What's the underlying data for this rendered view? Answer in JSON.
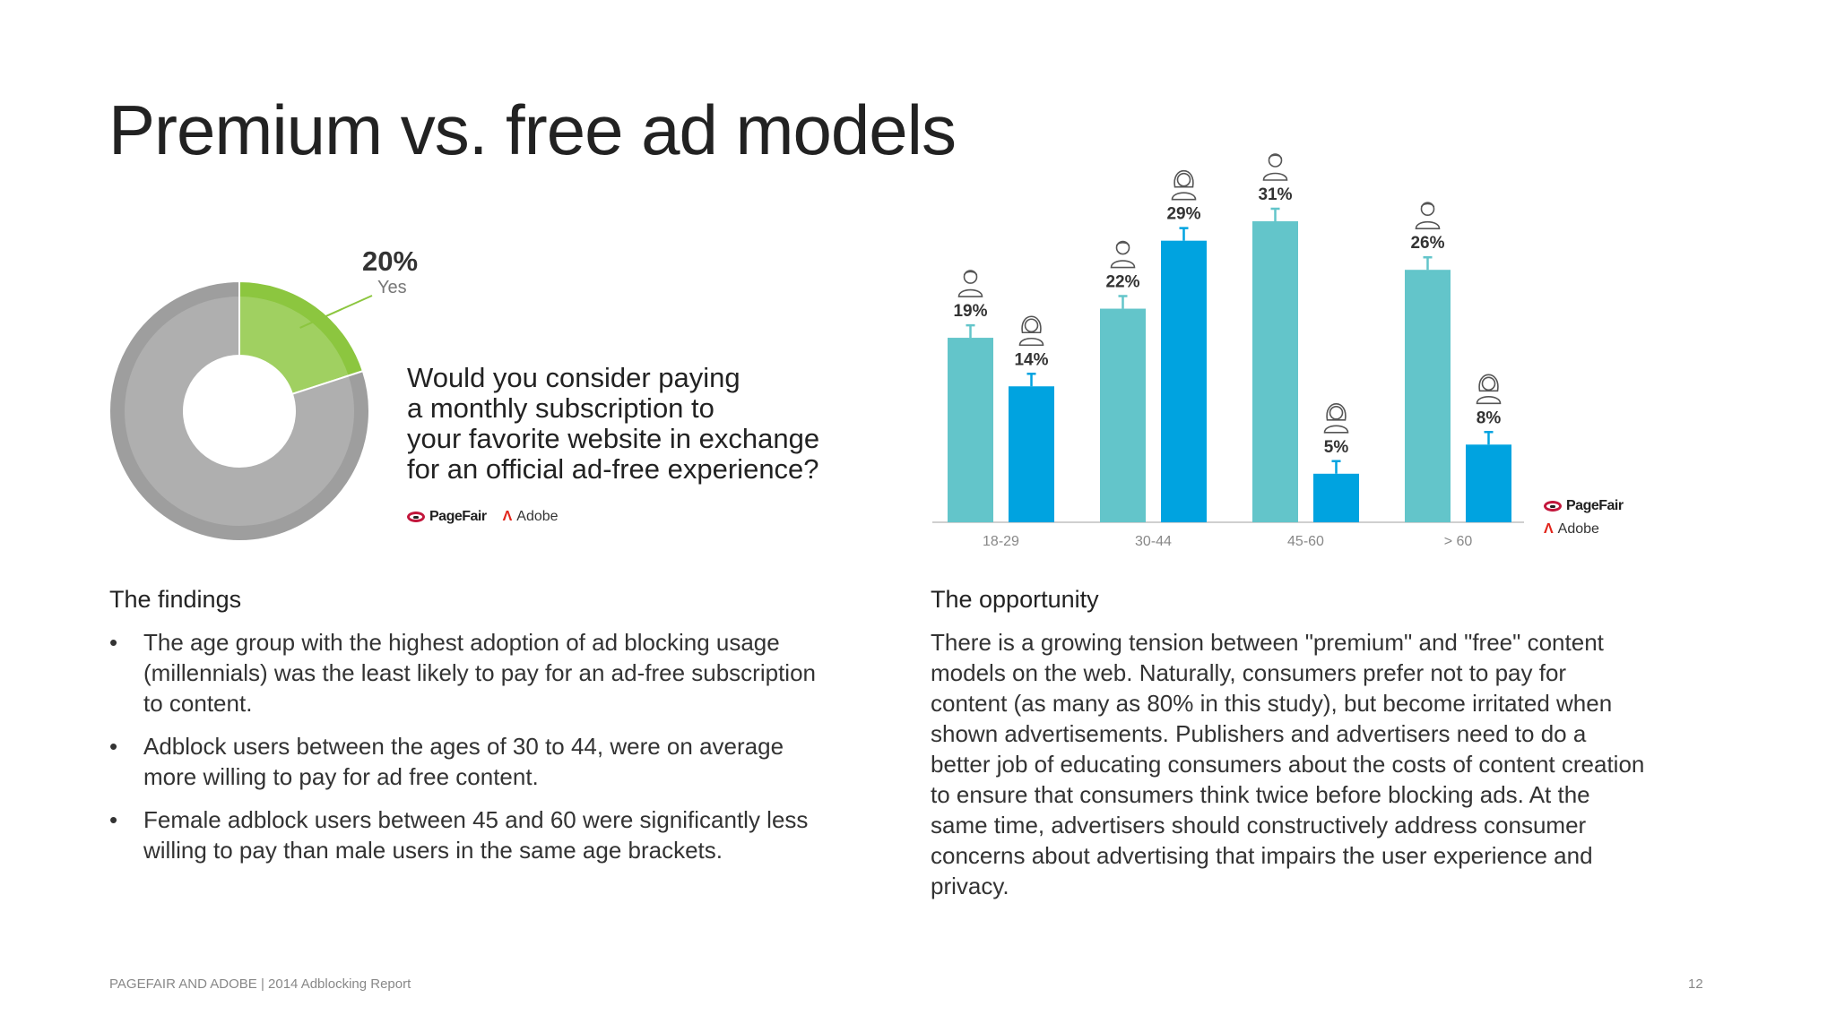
{
  "title": "Premium vs. free ad models",
  "question_lines": [
    "Would you consider paying",
    "a monthly subscription to",
    "your favorite website in exchange",
    "for an official ad-free experience?"
  ],
  "logos": {
    "pagefair": "PageFair",
    "adobe": "Adobe"
  },
  "colors": {
    "donut_yes": "#8cc63f",
    "donut_no": "#9e9e9e",
    "bar_male": "#63c5ca",
    "bar_female": "#00a3e0"
  },
  "chart_data": [
    {
      "type": "pie",
      "variant": "donut",
      "slices": [
        {
          "label": "Yes",
          "value": 20
        },
        {
          "label": "",
          "value": 80
        }
      ],
      "callout": {
        "value_label": "20%",
        "label": "Yes"
      }
    },
    {
      "type": "bar",
      "categories": [
        "18-29",
        "30-44",
        "45-60",
        "> 60"
      ],
      "series": [
        {
          "icon": "male-person-icon",
          "values": [
            19,
            22,
            31,
            26
          ],
          "labels": [
            "19%",
            "22%",
            "31%",
            "26%"
          ]
        },
        {
          "icon": "female-person-icon",
          "values": [
            14,
            29,
            5,
            8
          ],
          "labels": [
            "14%",
            "29%",
            "5%",
            "8%"
          ]
        }
      ],
      "ylim": [
        0,
        31
      ],
      "error_bars": true,
      "grid": false
    }
  ],
  "findings": {
    "heading": "The findings",
    "items": [
      "The age group with the highest adoption of ad blocking usage (millennials) was the least likely to pay for an ad-free subscription to content.",
      "Adblock users between the ages of 30 to 44, were on average more willing to pay for ad free content.",
      "Female adblock users between 45 and 60 were significantly less willing to pay than male users in the same age brackets."
    ]
  },
  "opportunity": {
    "heading": "The opportunity",
    "text": "There is a growing tension between \"premium\" and \"free\" content models on the web. Naturally, consumers prefer not to pay for content (as many as 80% in this study), but become irritated when shown advertisements. Publishers and advertisers need to do a better job of educating consumers about the costs of content creation to ensure that consumers think twice before blocking ads. At the same time, advertisers should constructively address consumer concerns about advertising that impairs the user experience and privacy."
  },
  "footer": {
    "left": "PAGEFAIR AND ADOBE | 2014 Adblocking Report",
    "page": "12"
  }
}
